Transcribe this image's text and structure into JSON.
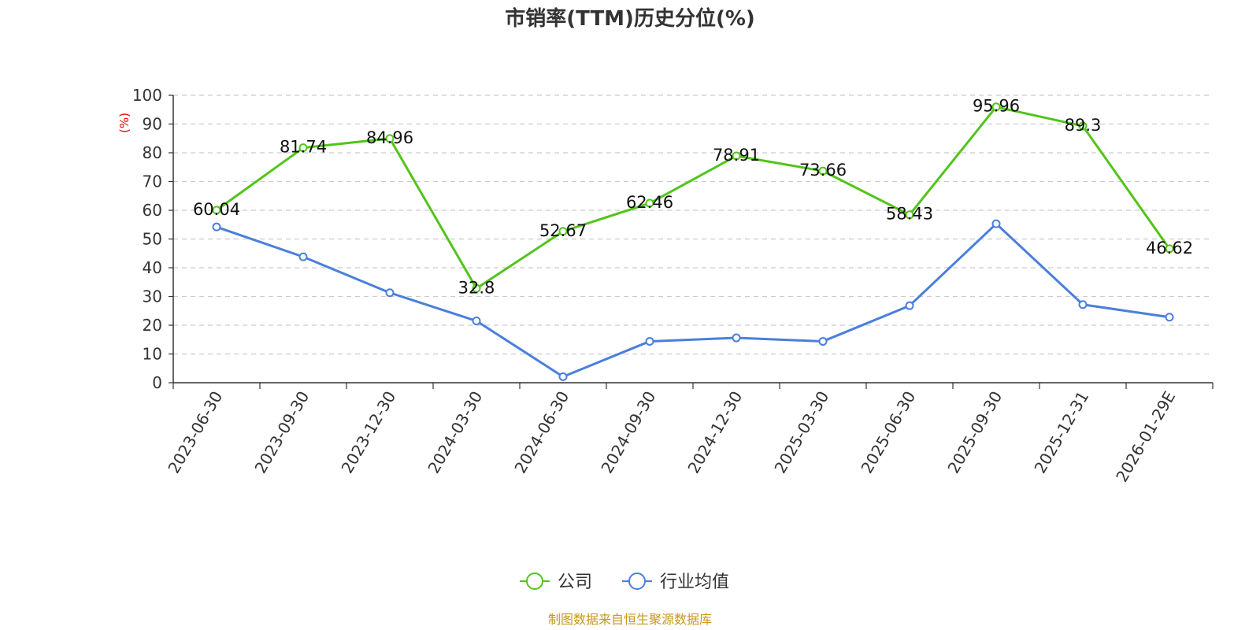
{
  "chart_data": {
    "type": "line",
    "title": "市销率(TTM)历史分位(%)",
    "ylabel": "(%)",
    "xlabel": "",
    "ylim": [
      0,
      100
    ],
    "yticks": [
      0,
      10,
      20,
      30,
      40,
      50,
      60,
      70,
      80,
      90,
      100
    ],
    "grid": true,
    "legend_position": "bottom-center",
    "categories": [
      "2023-06-30",
      "2023-09-30",
      "2023-12-30",
      "2024-03-30",
      "2024-06-30",
      "2024-09-30",
      "2024-12-30",
      "2025-03-30",
      "2025-06-30",
      "2025-09-30",
      "2025-12-31",
      "2026-01-29E"
    ],
    "series": [
      {
        "name": "公司",
        "color": "#52c41a",
        "values": [
          60.04,
          81.74,
          84.96,
          32.8,
          52.67,
          62.46,
          78.91,
          73.66,
          58.43,
          95.96,
          89.3,
          46.62
        ],
        "labels": [
          "60.04",
          "81.74",
          "84.96",
          "32.8",
          "52.67",
          "62.46",
          "78.91",
          "73.66",
          "58.43",
          "95.96",
          "89.3",
          "46.62"
        ]
      },
      {
        "name": "行业均值",
        "color": "#4a7fdc",
        "values": [
          54.2,
          43.8,
          31.3,
          21.5,
          2.1,
          14.4,
          15.6,
          14.4,
          26.8,
          55.3,
          27.2,
          22.8
        ]
      }
    ],
    "source": "制图数据来自恒生聚源数据库"
  }
}
